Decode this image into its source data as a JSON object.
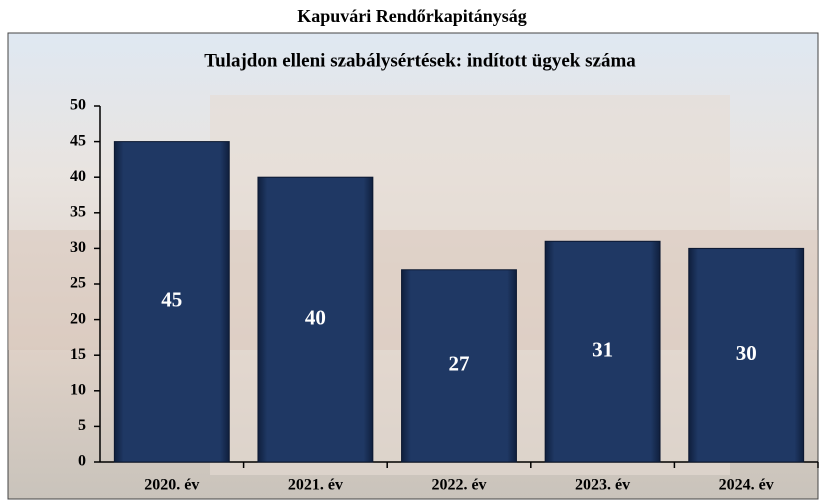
{
  "chart_data": {
    "type": "bar",
    "title": "Kapuvári Rendőrkapitányság",
    "subtitle": "Tulajdon elleni szabálysértések: indított ügyek száma",
    "categories": [
      "2020. év",
      "2021. év",
      "2022. év",
      "2023. év",
      "2024. év"
    ],
    "values": [
      45,
      40,
      27,
      31,
      30
    ],
    "color": "#1f3864",
    "ylim": [
      0,
      50
    ],
    "yticks": [
      0,
      5,
      10,
      15,
      20,
      25,
      30,
      35,
      40,
      45,
      50
    ]
  }
}
